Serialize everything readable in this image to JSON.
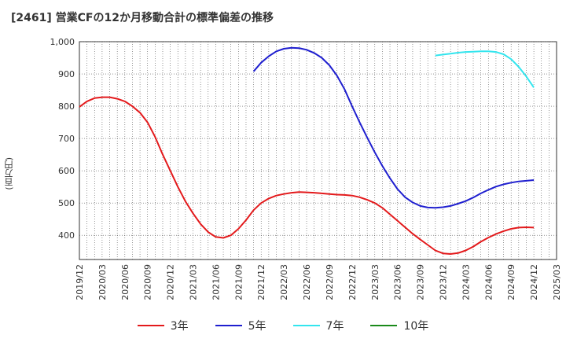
{
  "title": "[2461]  営業CFの12か月移動合計の標準偏差の推移",
  "y_unit": "(百万円)",
  "chart_data": {
    "type": "line",
    "title": "[2461]  営業CFの12か月移動合計の標準偏差の推移",
    "ylabel": "(百万円)",
    "xlabel": "",
    "ylim": [
      325,
      1000
    ],
    "y_ticks": [
      "400",
      "500",
      "600",
      "700",
      "800",
      "900",
      "1,000"
    ],
    "x_ticks": [
      "2019/12",
      "2020/03",
      "2020/06",
      "2020/09",
      "2020/12",
      "2021/03",
      "2021/06",
      "2021/09",
      "2021/12",
      "2022/03",
      "2022/06",
      "2022/09",
      "2022/12",
      "2023/03",
      "2023/06",
      "2023/09",
      "2023/12",
      "2024/03",
      "2024/06",
      "2024/09",
      "2024/12",
      "2025/03"
    ],
    "grid": true,
    "legend_position": "bottom",
    "series": [
      {
        "name": "3年",
        "color": "#e31a1c",
        "x": [
          "2019/12",
          "2020/01",
          "2020/02",
          "2020/03",
          "2020/04",
          "2020/05",
          "2020/06",
          "2020/07",
          "2020/08",
          "2020/09",
          "2020/10",
          "2020/11",
          "2020/12",
          "2021/01",
          "2021/02",
          "2021/03",
          "2021/04",
          "2021/05",
          "2021/06",
          "2021/07",
          "2021/08",
          "2021/09",
          "2021/10",
          "2021/11",
          "2021/12",
          "2022/01",
          "2022/02",
          "2022/03",
          "2022/04",
          "2022/05",
          "2022/06",
          "2022/07",
          "2022/08",
          "2022/09",
          "2022/10",
          "2022/11",
          "2022/12",
          "2023/01",
          "2023/02",
          "2023/03",
          "2023/04",
          "2023/05",
          "2023/06",
          "2023/07",
          "2023/08",
          "2023/09",
          "2023/10",
          "2023/11",
          "2023/12",
          "2024/01",
          "2024/02",
          "2024/03",
          "2024/04",
          "2024/05",
          "2024/06",
          "2024/07",
          "2024/08",
          "2024/09",
          "2024/10",
          "2024/11",
          "2024/12"
        ],
        "values": [
          798,
          815,
          825,
          828,
          828,
          823,
          815,
          800,
          780,
          750,
          705,
          650,
          600,
          550,
          505,
          468,
          435,
          410,
          395,
          392,
          400,
          420,
          447,
          478,
          500,
          514,
          523,
          528,
          532,
          534,
          533,
          532,
          530,
          528,
          526,
          525,
          523,
          518,
          510,
          500,
          485,
          465,
          445,
          425,
          405,
          387,
          370,
          353,
          344,
          342,
          345,
          353,
          365,
          380,
          393,
          404,
          413,
          420,
          424,
          425,
          424
        ]
      },
      {
        "name": "5年",
        "color": "#1f1fcf",
        "x": [
          "2021/11",
          "2021/12",
          "2022/01",
          "2022/02",
          "2022/03",
          "2022/04",
          "2022/05",
          "2022/06",
          "2022/07",
          "2022/08",
          "2022/09",
          "2022/10",
          "2022/11",
          "2022/12",
          "2023/01",
          "2023/02",
          "2023/03",
          "2023/04",
          "2023/05",
          "2023/06",
          "2023/07",
          "2023/08",
          "2023/09",
          "2023/10",
          "2023/11",
          "2023/12",
          "2024/01",
          "2024/02",
          "2024/03",
          "2024/04",
          "2024/05",
          "2024/06",
          "2024/07",
          "2024/08",
          "2024/09",
          "2024/10",
          "2024/11",
          "2024/12"
        ],
        "values": [
          908,
          935,
          955,
          970,
          978,
          981,
          980,
          975,
          965,
          950,
          927,
          895,
          853,
          800,
          750,
          703,
          657,
          615,
          577,
          543,
          518,
          502,
          491,
          486,
          485,
          487,
          491,
          498,
          506,
          517,
          530,
          541,
          551,
          558,
          563,
          567,
          569,
          571
        ]
      },
      {
        "name": "7年",
        "color": "#33e5ee",
        "x": [
          "2023/11",
          "2023/12",
          "2024/01",
          "2024/02",
          "2024/03",
          "2024/04",
          "2024/05",
          "2024/06",
          "2024/07",
          "2024/08",
          "2024/09",
          "2024/10",
          "2024/11",
          "2024/12"
        ],
        "values": [
          957,
          960,
          963,
          966,
          968,
          969,
          970,
          970,
          968,
          961,
          946,
          922,
          892,
          858
        ]
      },
      {
        "name": "10年",
        "color": "#1a8a1a",
        "x": [],
        "values": []
      }
    ]
  }
}
